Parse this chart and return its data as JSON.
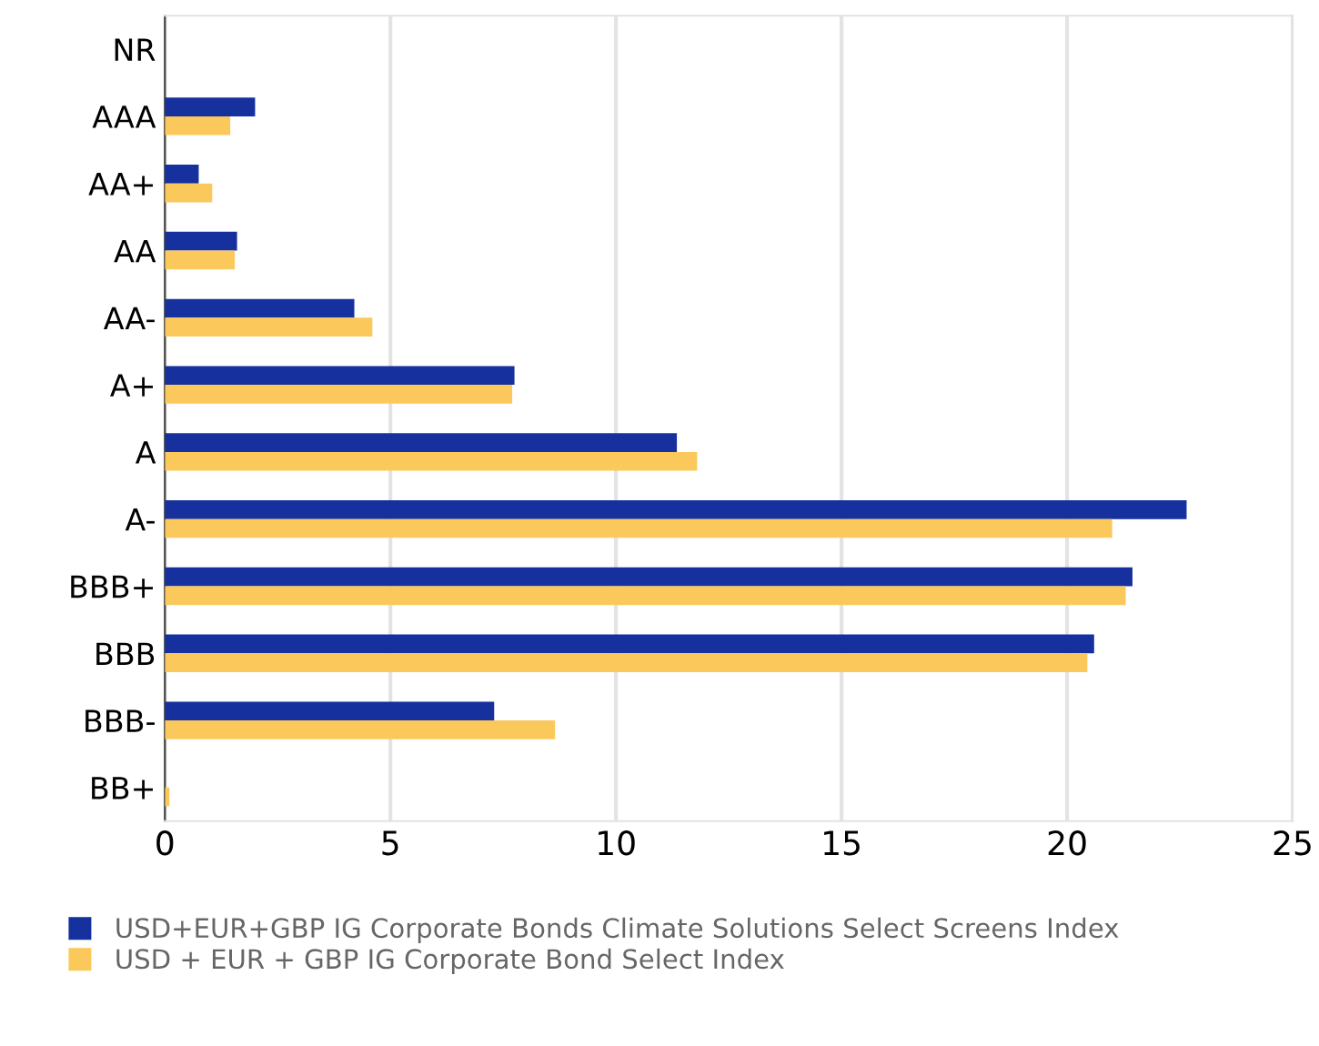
{
  "chart_data": {
    "type": "bar",
    "orientation": "horizontal",
    "categories": [
      "NR",
      "AAA",
      "AA+",
      "AA",
      "AA-",
      "A+",
      "A",
      "A-",
      "BBB+",
      "BBB",
      "BBB-",
      "BB+"
    ],
    "series": [
      {
        "name": "USD+EUR+GBP IG Corporate Bonds Climate Solutions Select Screens Index",
        "color": "#16309e",
        "values": [
          0,
          2.0,
          0.75,
          1.6,
          4.2,
          7.75,
          11.35,
          22.65,
          21.45,
          20.6,
          7.3,
          0
        ]
      },
      {
        "name": "USD + EUR + GBP IG Corporate Bond Select Index",
        "color": "#fbc95b",
        "values": [
          0,
          1.45,
          1.05,
          1.55,
          4.6,
          7.7,
          11.8,
          21.0,
          21.3,
          20.45,
          8.65,
          0.1
        ]
      }
    ],
    "xlim": [
      0,
      25
    ],
    "xticks": [
      0,
      5,
      10,
      15,
      20,
      25
    ],
    "grid": "x",
    "legend": "bottom"
  }
}
